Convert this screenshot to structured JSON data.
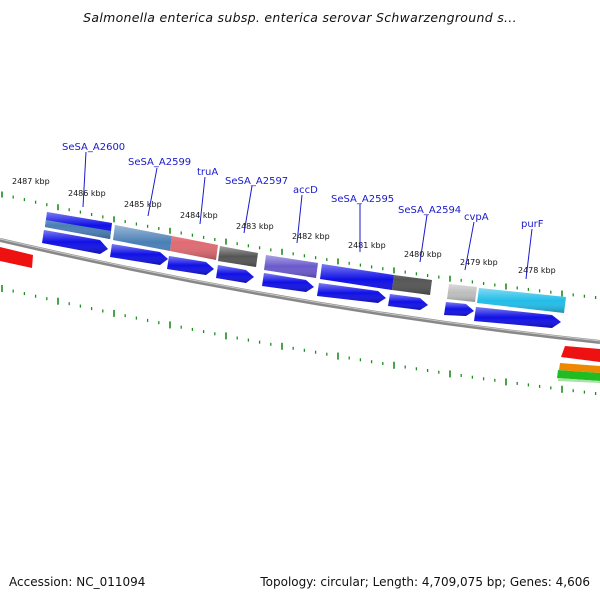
{
  "title": "Salmonella enterica subsp. enterica serovar Schwarzenground s...",
  "footer": {
    "accession": "Accession: NC_011094",
    "summary": "Topology: circular; Length: 4,709,075 bp; Genes: 4,606"
  },
  "ticks": [
    "2487 kbp",
    "2486 kbp",
    "2485 kbp",
    "2484 kbp",
    "2483 kbp",
    "2482 kbp",
    "2481 kbp",
    "2480 kbp",
    "2479 kbp",
    "2478 kbp"
  ],
  "genes": [
    "SeSA_A2600",
    "SeSA_A2599",
    "truA",
    "SeSA_A2597",
    "accD",
    "SeSA_A2595",
    "SeSA_A2594",
    "cvpA",
    "purF"
  ],
  "colors": {
    "gene_label": "#1a1acc",
    "cds": "#1010e6",
    "tick": "#1e8c1e",
    "backbone": "#808080",
    "truA_feature": "#e06a72",
    "accD_feature": "#6a5acd",
    "purF_feature": "#22bde8",
    "grey_feature": "#555555",
    "steel_feature": "#4a7fb5",
    "edge_red": "#ee1111",
    "edge_orange": "#ee8800",
    "edge_green": "#22bb22"
  }
}
